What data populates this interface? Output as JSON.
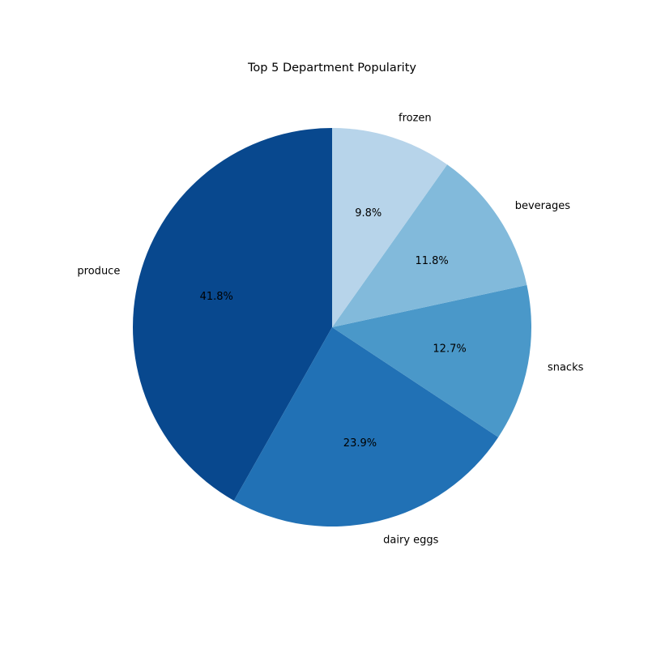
{
  "chart_data": {
    "type": "pie",
    "title": "Top 5 Department Popularity",
    "categories": [
      "produce",
      "dairy eggs",
      "snacks",
      "beverages",
      "frozen"
    ],
    "values": [
      41.8,
      23.9,
      12.7,
      11.8,
      9.8
    ],
    "value_labels": [
      "41.8%",
      "23.9%",
      "12.7%",
      "11.8%",
      "9.8%"
    ],
    "colors": [
      "#08488e",
      "#2171b5",
      "#4a98c9",
      "#82badb",
      "#b7d4ea"
    ],
    "start_angle_deg": 90,
    "direction": "counterclockwise"
  }
}
